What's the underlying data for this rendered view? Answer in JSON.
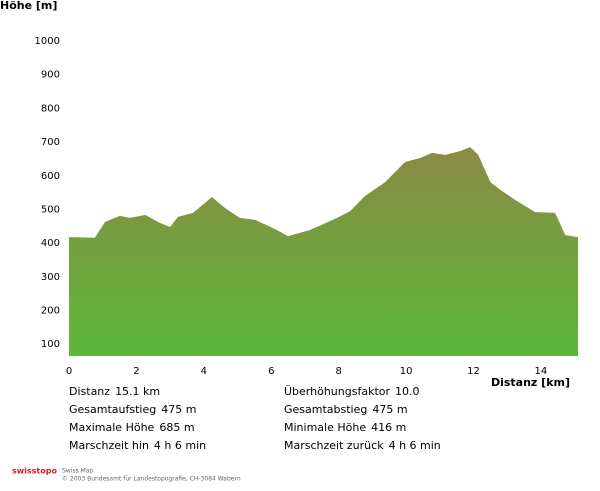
{
  "chart_data": {
    "type": "area",
    "ylabel": "Höhe [m]",
    "xlabel": "Distanz [km]",
    "x": [
      0,
      0.77,
      1.07,
      1.51,
      1.81,
      2.26,
      2.7,
      3.0,
      3.23,
      3.68,
      4.24,
      4.63,
      5.07,
      5.52,
      6.11,
      6.5,
      7.15,
      7.89,
      8.34,
      8.78,
      9.38,
      9.97,
      10.42,
      10.77,
      11.16,
      11.6,
      11.9,
      12.14,
      12.5,
      12.8,
      13.24,
      13.83,
      14.42,
      14.72,
      15.1
    ],
    "values": [
      418,
      416,
      463,
      481,
      475,
      484,
      460,
      448,
      478,
      490,
      537,
      504,
      475,
      469,
      442,
      421,
      439,
      472,
      495,
      540,
      581,
      641,
      653,
      668,
      662,
      673,
      685,
      662,
      581,
      558,
      528,
      492,
      490,
      424,
      418
    ],
    "color_top": "#8a8a44",
    "color_bottom": "#5cb83a",
    "xlim": [
      0,
      15.1
    ],
    "xticks": [
      0,
      2,
      4,
      6,
      8,
      10,
      12,
      14
    ],
    "ylim": [
      65,
      1000
    ],
    "yticks": [
      100,
      200,
      300,
      400,
      500,
      600,
      700,
      800,
      900,
      1000
    ]
  },
  "stats": [
    {
      "label": "Distanz",
      "value": "15.1 km"
    },
    {
      "label": "Überhöhungsfaktor",
      "value": "10.0"
    },
    {
      "label": "Gesamtaufstieg",
      "value": "475 m"
    },
    {
      "label": "Gesamtabstieg",
      "value": "475 m"
    },
    {
      "label": "Maximale Höhe",
      "value": "685 m"
    },
    {
      "label": "Minimale Höhe",
      "value": "416 m"
    },
    {
      "label": "Marschzeit hin",
      "value": "4 h 6 min"
    },
    {
      "label": "Marschzeit zurück",
      "value": "4 h 6 min"
    }
  ],
  "footer": {
    "logo": "swisstopo",
    "line1": "Swiss Map",
    "line2": "© 2003 Bundesamt für Landestopografie, CH-3084 Wabern"
  }
}
